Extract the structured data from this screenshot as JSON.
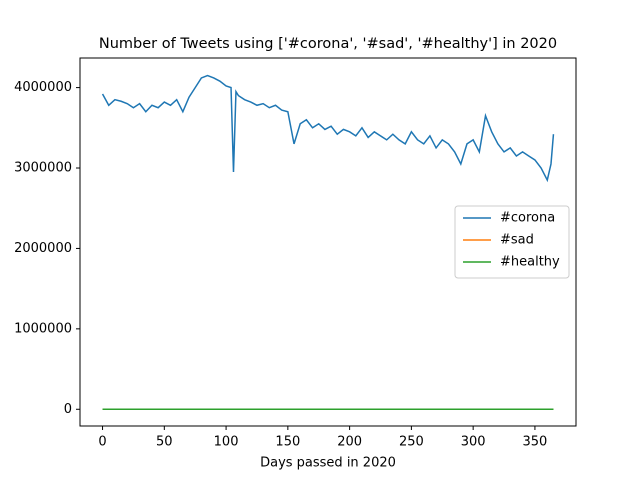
{
  "chart_data": {
    "type": "line",
    "title": "Number of Tweets using ['#corona', '#sad', '#healthy'] in 2020",
    "x_label": "Days passed in 2020",
    "x": [
      0,
      5,
      10,
      15,
      20,
      25,
      30,
      35,
      40,
      45,
      50,
      55,
      60,
      65,
      70,
      75,
      80,
      85,
      90,
      95,
      100,
      104,
      106,
      108,
      110,
      115,
      120,
      125,
      130,
      135,
      140,
      145,
      150,
      155,
      160,
      165,
      170,
      175,
      180,
      185,
      190,
      195,
      200,
      205,
      210,
      215,
      220,
      225,
      230,
      235,
      240,
      245,
      250,
      255,
      260,
      265,
      270,
      275,
      280,
      285,
      290,
      295,
      300,
      305,
      310,
      315,
      320,
      325,
      330,
      335,
      340,
      345,
      350,
      355,
      360,
      363,
      365
    ],
    "series": [
      {
        "name": "#corona",
        "color": "#1f77b4",
        "values": [
          3920000,
          3780000,
          3850000,
          3830000,
          3800000,
          3750000,
          3800000,
          3700000,
          3780000,
          3750000,
          3820000,
          3780000,
          3850000,
          3700000,
          3880000,
          4000000,
          4120000,
          4150000,
          4120000,
          4080000,
          4020000,
          4000000,
          2950000,
          3950000,
          3900000,
          3850000,
          3820000,
          3780000,
          3800000,
          3750000,
          3780000,
          3720000,
          3700000,
          3300000,
          3550000,
          3600000,
          3500000,
          3550000,
          3480000,
          3520000,
          3420000,
          3480000,
          3450000,
          3400000,
          3500000,
          3380000,
          3450000,
          3400000,
          3350000,
          3420000,
          3350000,
          3300000,
          3450000,
          3350000,
          3300000,
          3400000,
          3250000,
          3350000,
          3300000,
          3200000,
          3050000,
          3300000,
          3350000,
          3200000,
          3650000,
          3450000,
          3300000,
          3200000,
          3250000,
          3150000,
          3200000,
          3150000,
          3100000,
          3000000,
          2850000,
          3050000,
          3420000
        ]
      },
      {
        "name": "#sad",
        "color": "#ff7f0e",
        "values": [
          0,
          0,
          0,
          0,
          0,
          0,
          0,
          0,
          0,
          0,
          0,
          0,
          0,
          0,
          0,
          0,
          0,
          0,
          0,
          0,
          0,
          0,
          0,
          0,
          0,
          0,
          0,
          0,
          0,
          0,
          0,
          0,
          0,
          0,
          0,
          0,
          0,
          0,
          0,
          0,
          0,
          0,
          0,
          0,
          0,
          0,
          0,
          0,
          0,
          0,
          0,
          0,
          0,
          0,
          0,
          0,
          0,
          0,
          0,
          0,
          0,
          0,
          0,
          0,
          0,
          0,
          0,
          0,
          0,
          0,
          0,
          0,
          0,
          0,
          0,
          0,
          0
        ]
      },
      {
        "name": "#healthy",
        "color": "#2ca02c",
        "values": [
          0,
          0,
          0,
          0,
          0,
          0,
          0,
          0,
          0,
          0,
          0,
          0,
          0,
          0,
          0,
          0,
          0,
          0,
          0,
          0,
          0,
          0,
          0,
          0,
          0,
          0,
          0,
          0,
          0,
          0,
          0,
          0,
          0,
          0,
          0,
          0,
          0,
          0,
          0,
          0,
          0,
          0,
          0,
          0,
          0,
          0,
          0,
          0,
          0,
          0,
          0,
          0,
          0,
          0,
          0,
          0,
          0,
          0,
          0,
          0,
          0,
          0,
          0,
          0,
          0,
          0,
          0,
          0,
          0,
          0,
          0,
          0,
          0,
          0,
          0,
          0,
          0
        ]
      }
    ],
    "xlim": [
      -18.25,
      383.25
    ],
    "xticks": [
      0,
      50,
      100,
      150,
      200,
      250,
      300,
      350
    ],
    "ylim": [
      -208000,
      4368000
    ],
    "yticks": [
      0,
      1000000,
      2000000,
      3000000,
      4000000
    ],
    "legend": "center right"
  }
}
